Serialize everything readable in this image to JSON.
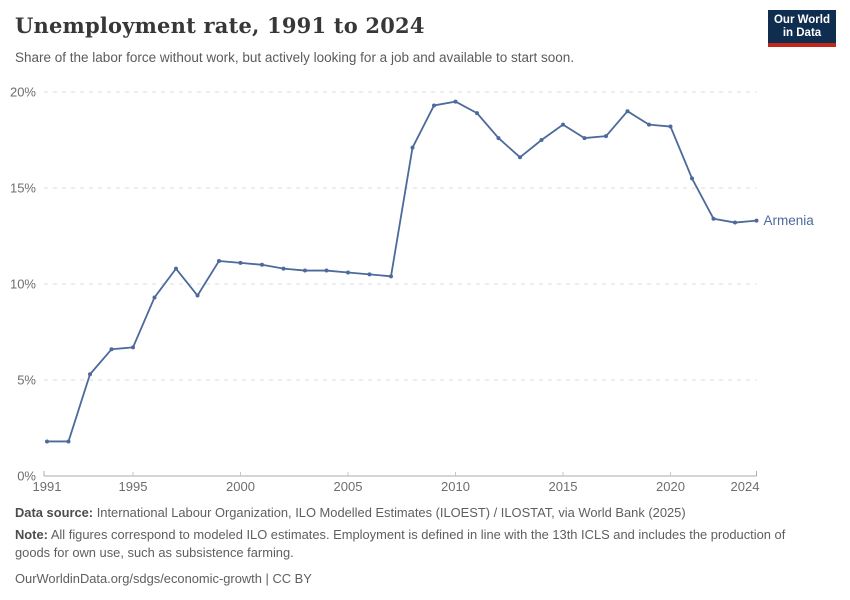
{
  "header": {
    "title": "Unemployment rate, 1991 to 2024",
    "subtitle": "Share of the labor force without work, but actively looking for a job and available to start soon.",
    "logo": {
      "line1": "Our World",
      "line2": "in Data",
      "bg_color": "#0f2d4f",
      "accent_color": "#c42619"
    }
  },
  "chart_data": {
    "type": "line",
    "title": "Unemployment rate, 1991 to 2024",
    "xlabel": "",
    "ylabel": "",
    "xlim": [
      1991,
      2024
    ],
    "ylim": [
      0,
      20
    ],
    "grid": "horizontal-dashed",
    "legend_position": "end-of-line",
    "xticks": [
      {
        "value": 1991,
        "label": "1991"
      },
      {
        "value": 1995,
        "label": "1995"
      },
      {
        "value": 2000,
        "label": "2000"
      },
      {
        "value": 2005,
        "label": "2005"
      },
      {
        "value": 2010,
        "label": "2010"
      },
      {
        "value": 2015,
        "label": "2015"
      },
      {
        "value": 2020,
        "label": "2020"
      },
      {
        "value": 2024,
        "label": "2024"
      }
    ],
    "yticks": [
      {
        "value": 0,
        "label": "0%"
      },
      {
        "value": 5,
        "label": "5%"
      },
      {
        "value": 10,
        "label": "10%"
      },
      {
        "value": 15,
        "label": "15%"
      },
      {
        "value": 20,
        "label": "20%"
      }
    ],
    "series": [
      {
        "name": "Armenia",
        "color": "#4c6a9c",
        "x": [
          1991,
          1992,
          1993,
          1994,
          1995,
          1996,
          1997,
          1998,
          1999,
          2000,
          2001,
          2002,
          2003,
          2004,
          2005,
          2006,
          2007,
          2008,
          2009,
          2010,
          2011,
          2012,
          2013,
          2014,
          2015,
          2016,
          2017,
          2018,
          2019,
          2020,
          2021,
          2022,
          2023,
          2024
        ],
        "values": [
          1.8,
          1.8,
          5.3,
          6.6,
          6.7,
          9.3,
          10.8,
          9.4,
          11.2,
          11.1,
          11.0,
          10.8,
          10.7,
          10.7,
          10.6,
          10.5,
          10.4,
          17.1,
          19.3,
          19.5,
          18.9,
          17.6,
          16.6,
          17.5,
          18.3,
          17.6,
          17.7,
          19.0,
          18.3,
          18.2,
          15.5,
          13.4,
          13.2,
          13.3
        ]
      }
    ]
  },
  "footer": {
    "datasource_label": "Data source:",
    "datasource_text": "International Labour Organization, ILO Modelled Estimates (ILOEST) / ILOSTAT, via World Bank (2025)",
    "note_label": "Note:",
    "note_text": "All figures correspond to modeled ILO estimates. Employment is defined in line with the 13th ICLS and includes the production of goods for own use, such as subsistence farming.",
    "url": "OurWorldinData.org/sdgs/economic-growth",
    "separator": "|",
    "license": "CC BY"
  }
}
